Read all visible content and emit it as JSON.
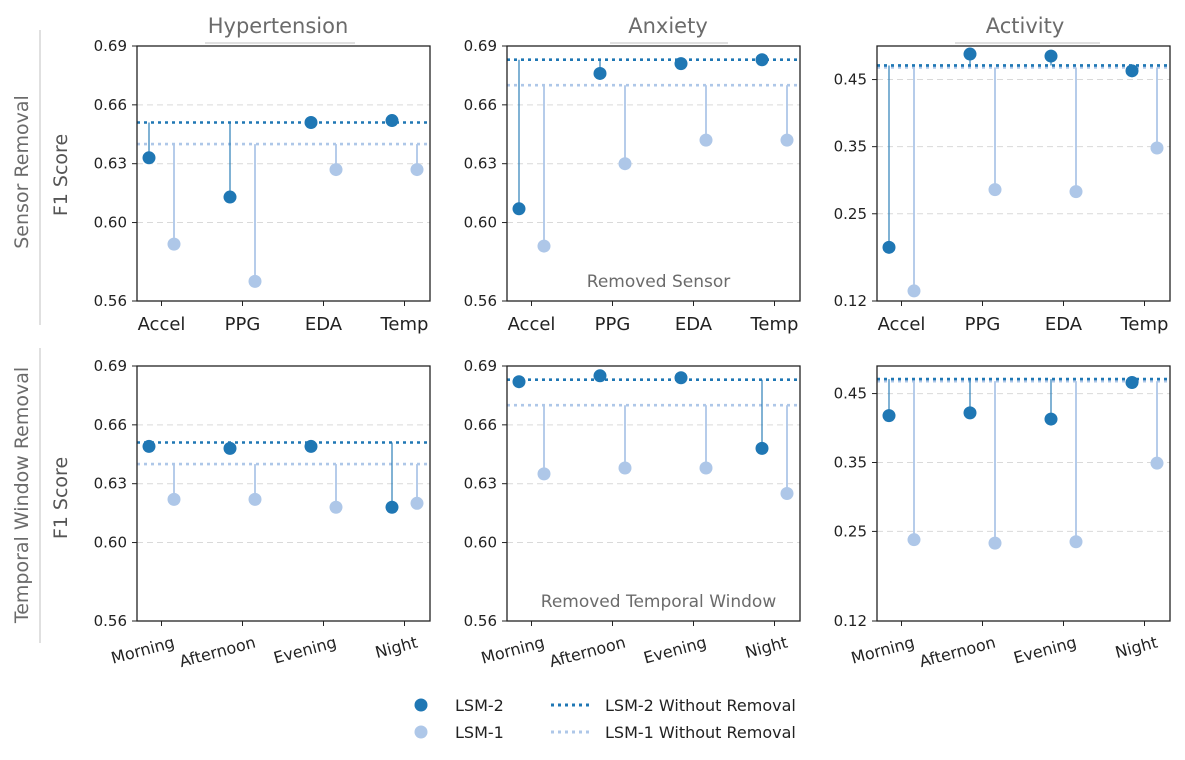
{
  "colors": {
    "lsm2": "#1f77b4",
    "lsm1": "#aec7e8",
    "grid": "#d9d9d9",
    "axis": "#222222",
    "title": "#6b6b6b"
  },
  "column_titles": [
    "Hypertension",
    "Anxiety",
    "Activity"
  ],
  "row_titles": [
    "Sensor Removal",
    "Temporal Window Removal"
  ],
  "ylabel": "F1 Score",
  "legend": {
    "lsm2": "LSM-2",
    "lsm1": "LSM-1",
    "lsm2_baseline": "LSM-2 Without Removal",
    "lsm1_baseline": "LSM-1 Without Removal"
  },
  "chart_data": [
    {
      "type": "scatter",
      "title": "Hypertension",
      "row": "Sensor Removal",
      "xlabel": "",
      "ylabel": "F1 Score",
      "categories": [
        "Accel",
        "PPG",
        "EDA",
        "Temp"
      ],
      "ylim": [
        0.56,
        0.69
      ],
      "yticks": [
        0.56,
        0.6,
        0.63,
        0.66,
        0.69
      ],
      "ytick_labels": [
        "0.56",
        "0.60",
        "0.63",
        "0.66",
        "0.69"
      ],
      "series": [
        {
          "name": "LSM-2",
          "values": [
            0.633,
            0.613,
            0.651,
            0.652
          ],
          "baseline": 0.651
        },
        {
          "name": "LSM-1",
          "values": [
            0.589,
            0.57,
            0.627,
            0.627
          ],
          "baseline": 0.64
        }
      ],
      "annotation": ""
    },
    {
      "type": "scatter",
      "title": "Anxiety",
      "row": "Sensor Removal",
      "xlabel": "",
      "ylabel": "",
      "categories": [
        "Accel",
        "PPG",
        "EDA",
        "Temp"
      ],
      "ylim": [
        0.56,
        0.69
      ],
      "yticks": [
        0.56,
        0.6,
        0.63,
        0.66,
        0.69
      ],
      "ytick_labels": [
        "0.56",
        "0.60",
        "0.63",
        "0.66",
        "0.69"
      ],
      "series": [
        {
          "name": "LSM-2",
          "values": [
            0.607,
            0.676,
            0.681,
            0.683
          ],
          "baseline": 0.683
        },
        {
          "name": "LSM-1",
          "values": [
            0.588,
            0.63,
            0.642,
            0.642
          ],
          "baseline": 0.67
        }
      ],
      "annotation": "Removed Sensor"
    },
    {
      "type": "scatter",
      "title": "Activity",
      "row": "Sensor Removal",
      "xlabel": "",
      "ylabel": "",
      "categories": [
        "Accel",
        "PPG",
        "EDA",
        "Temp"
      ],
      "ylim": [
        0.12,
        0.5
      ],
      "yticks": [
        0.12,
        0.25,
        0.35,
        0.45
      ],
      "ytick_labels": [
        "0.12",
        "0.25",
        "0.35",
        "0.45"
      ],
      "series": [
        {
          "name": "LSM-2",
          "values": [
            0.2,
            0.488,
            0.485,
            0.463
          ],
          "baseline": 0.471
        },
        {
          "name": "LSM-1",
          "values": [
            0.135,
            0.286,
            0.283,
            0.348
          ],
          "baseline": 0.468
        }
      ],
      "annotation": ""
    },
    {
      "type": "scatter",
      "title": "Hypertension",
      "row": "Temporal Window Removal",
      "xlabel": "",
      "ylabel": "F1 Score",
      "categories": [
        "Morning",
        "Afternoon",
        "Evening",
        "Night"
      ],
      "ylim": [
        0.56,
        0.69
      ],
      "yticks": [
        0.56,
        0.6,
        0.63,
        0.66,
        0.69
      ],
      "ytick_labels": [
        "0.56",
        "0.60",
        "0.63",
        "0.66",
        "0.69"
      ],
      "series": [
        {
          "name": "LSM-2",
          "values": [
            0.649,
            0.648,
            0.649,
            0.618
          ],
          "baseline": 0.651
        },
        {
          "name": "LSM-1",
          "values": [
            0.622,
            0.622,
            0.618,
            0.62
          ],
          "baseline": 0.64
        }
      ],
      "annotation": ""
    },
    {
      "type": "scatter",
      "title": "Anxiety",
      "row": "Temporal Window Removal",
      "xlabel": "",
      "ylabel": "",
      "categories": [
        "Morning",
        "Afternoon",
        "Evening",
        "Night"
      ],
      "ylim": [
        0.56,
        0.69
      ],
      "yticks": [
        0.56,
        0.6,
        0.63,
        0.66,
        0.69
      ],
      "ytick_labels": [
        "0.56",
        "0.60",
        "0.63",
        "0.66",
        "0.69"
      ],
      "series": [
        {
          "name": "LSM-2",
          "values": [
            0.682,
            0.685,
            0.684,
            0.648
          ],
          "baseline": 0.683
        },
        {
          "name": "LSM-1",
          "values": [
            0.635,
            0.638,
            0.638,
            0.625
          ],
          "baseline": 0.67
        }
      ],
      "annotation": "Removed Temporal Window"
    },
    {
      "type": "scatter",
      "title": "Activity",
      "row": "Temporal Window Removal",
      "xlabel": "",
      "ylabel": "",
      "categories": [
        "Morning",
        "Afternoon",
        "Evening",
        "Night"
      ],
      "ylim": [
        0.12,
        0.49
      ],
      "yticks": [
        0.12,
        0.25,
        0.35,
        0.45
      ],
      "ytick_labels": [
        "0.12",
        "0.25",
        "0.35",
        "0.45"
      ],
      "series": [
        {
          "name": "LSM-2",
          "values": [
            0.418,
            0.422,
            0.413,
            0.466
          ],
          "baseline": 0.471
        },
        {
          "name": "LSM-1",
          "values": [
            0.238,
            0.233,
            0.235,
            0.349
          ],
          "baseline": 0.468
        }
      ],
      "annotation": ""
    }
  ]
}
